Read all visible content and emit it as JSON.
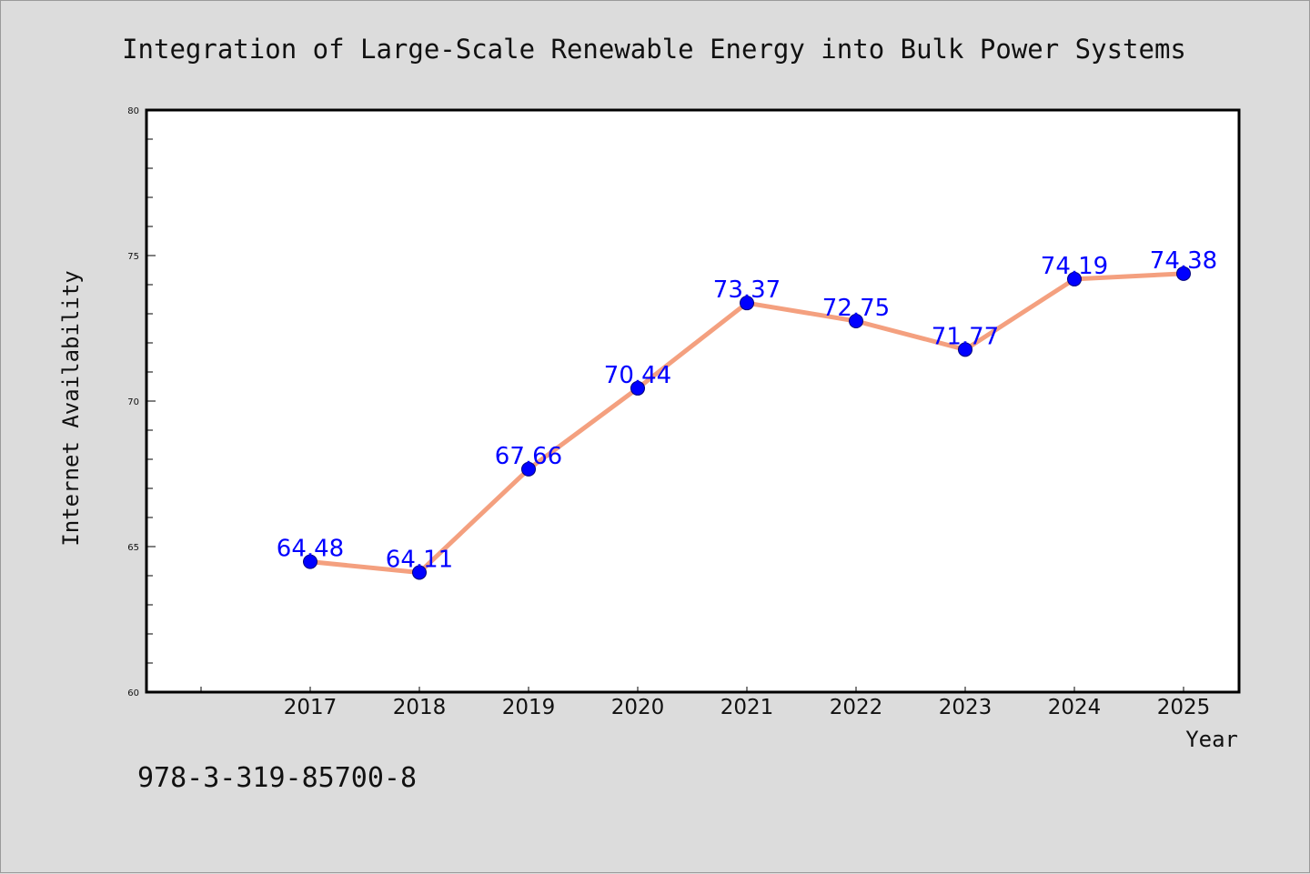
{
  "chart_data": {
    "type": "line",
    "title": "Integration of Large-Scale Renewable Energy into Bulk Power Systems",
    "xlabel": "Year",
    "ylabel": "Internet Availability",
    "categories": [
      "2017",
      "2018",
      "2019",
      "2020",
      "2021",
      "2022",
      "2023",
      "2024",
      "2025"
    ],
    "values": [
      64.48,
      64.11,
      67.66,
      70.44,
      73.37,
      72.75,
      71.77,
      74.19,
      74.38
    ],
    "data_labels": [
      "64.48",
      "64.11",
      "67.66",
      "70.44",
      "73.37",
      "72.75",
      "71.77",
      "74.19",
      "74.38"
    ],
    "ylim": [
      60,
      80
    ],
    "yticks": [
      60,
      65,
      70,
      75,
      80
    ],
    "ytick_labels": [
      "60",
      "65",
      "70",
      "75",
      "80"
    ],
    "grid": false,
    "legend": "none",
    "line_color": "#f4a07f",
    "marker_color": "#0000ff",
    "label_color": "#0000ff"
  },
  "footer_text": "978-3-319-85700-8"
}
